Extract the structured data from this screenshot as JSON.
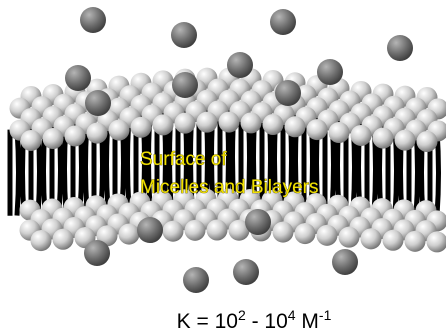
{
  "label": {
    "lines": [
      "Surface of",
      "Micelles and Bilayers"
    ]
  },
  "equation": {
    "parts": [
      "K = 10",
      "2",
      " - 10",
      "4",
      " M",
      "-1"
    ]
  }
}
